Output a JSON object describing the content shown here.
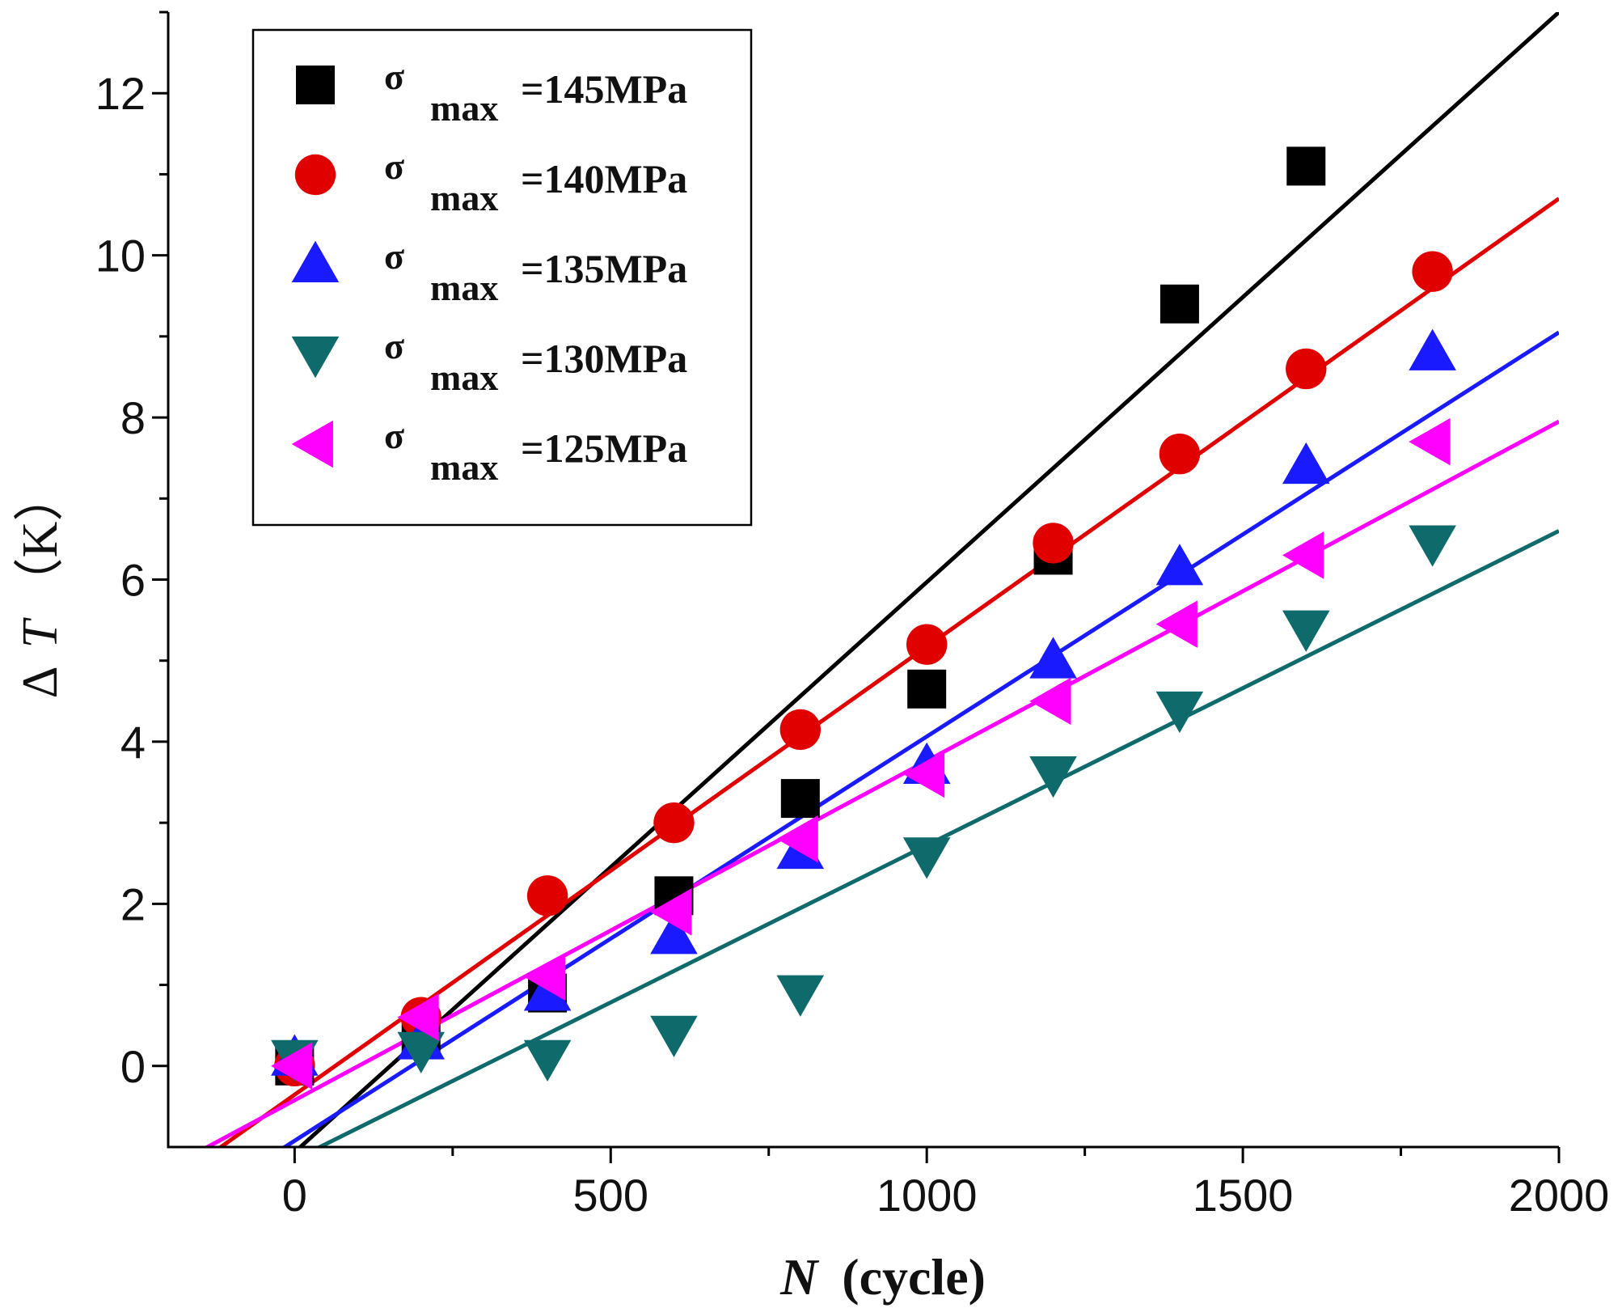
{
  "chart_data": {
    "type": "scatter",
    "xlabel": "N (cycle)",
    "xlabel_var": "N",
    "xlabel_unit": "(cycle)",
    "ylabel": "Δ T（K）",
    "ylabel_delta": "Δ",
    "ylabel_var": "T",
    "ylabel_unit": "（K）",
    "xlim": [
      -200,
      2000
    ],
    "ylim": [
      -1,
      13
    ],
    "x_ticks": [
      0,
      500,
      1000,
      1500,
      2000
    ],
    "x_tick_labels": [
      "0",
      "500",
      "1000",
      "1500",
      "2000"
    ],
    "y_ticks": [
      0,
      2,
      4,
      6,
      8,
      10,
      12
    ],
    "y_tick_labels": [
      "0",
      "2",
      "4",
      "6",
      "8",
      "10",
      "12"
    ],
    "grid": false,
    "legend_position": "top-left",
    "series": [
      {
        "name": "σ max=145MPa",
        "symbol": "σ",
        "subscript": "max",
        "value_text": "=145MPa",
        "marker": "square",
        "color": "#000000",
        "x": [
          0,
          200,
          400,
          600,
          800,
          1000,
          1200,
          1400,
          1600
        ],
        "y": [
          0,
          0.4,
          0.9,
          2.1,
          3.3,
          4.65,
          6.3,
          9.4,
          11.1
        ],
        "fit": {
          "x": [
            -200,
            2000
          ],
          "y": [
            -2.47,
            13.0
          ]
        }
      },
      {
        "name": "σ max=140MPa",
        "symbol": "σ",
        "subscript": "max",
        "value_text": "=140MPa",
        "marker": "circle",
        "color": "#e00000",
        "x": [
          0,
          200,
          400,
          600,
          800,
          1000,
          1200,
          1400,
          1600,
          1800
        ],
        "y": [
          0,
          0.6,
          2.1,
          3.0,
          4.15,
          5.2,
          6.45,
          7.55,
          8.6,
          9.8
        ],
        "fit": {
          "x": [
            -200,
            2000
          ],
          "y": [
            -1.46,
            10.7
          ]
        }
      },
      {
        "name": "σ max=135MPa",
        "symbol": "σ",
        "subscript": "max",
        "value_text": "=135MPa",
        "marker": "triangle-up",
        "color": "#1a1aff",
        "x": [
          0,
          200,
          400,
          600,
          800,
          1000,
          1200,
          1400,
          1600,
          1800
        ],
        "y": [
          0.1,
          0.3,
          0.9,
          1.6,
          2.65,
          3.7,
          5.0,
          6.15,
          7.4,
          8.8
        ],
        "fit": {
          "x": [
            -200,
            2000
          ],
          "y": [
            -1.92,
            9.05
          ]
        }
      },
      {
        "name": "σ max=130MPa",
        "symbol": "σ",
        "subscript": "max",
        "value_text": "=130MPa",
        "marker": "triangle-down",
        "color": "#0f6b6b",
        "x": [
          0,
          200,
          400,
          600,
          800,
          1000,
          1200,
          1400,
          1600,
          1800
        ],
        "y": [
          0.1,
          0.2,
          0.1,
          0.4,
          0.9,
          2.6,
          3.6,
          4.4,
          5.4,
          6.45
        ],
        "fit": {
          "x": [
            -200,
            2000
          ],
          "y": [
            -1.93,
            6.6
          ]
        }
      },
      {
        "name": "σ max=125MPa",
        "symbol": "σ",
        "subscript": "max",
        "value_text": "=125MPa",
        "marker": "triangle-left",
        "color": "#ff00ff",
        "x": [
          0,
          200,
          400,
          600,
          800,
          1000,
          1200,
          1400,
          1600,
          1800
        ],
        "y": [
          0,
          0.6,
          1.1,
          1.9,
          2.8,
          3.6,
          4.5,
          5.45,
          6.3,
          7.7
        ],
        "fit": {
          "x": [
            -200,
            2000
          ],
          "y": [
            -1.26,
            7.95
          ]
        }
      }
    ]
  }
}
